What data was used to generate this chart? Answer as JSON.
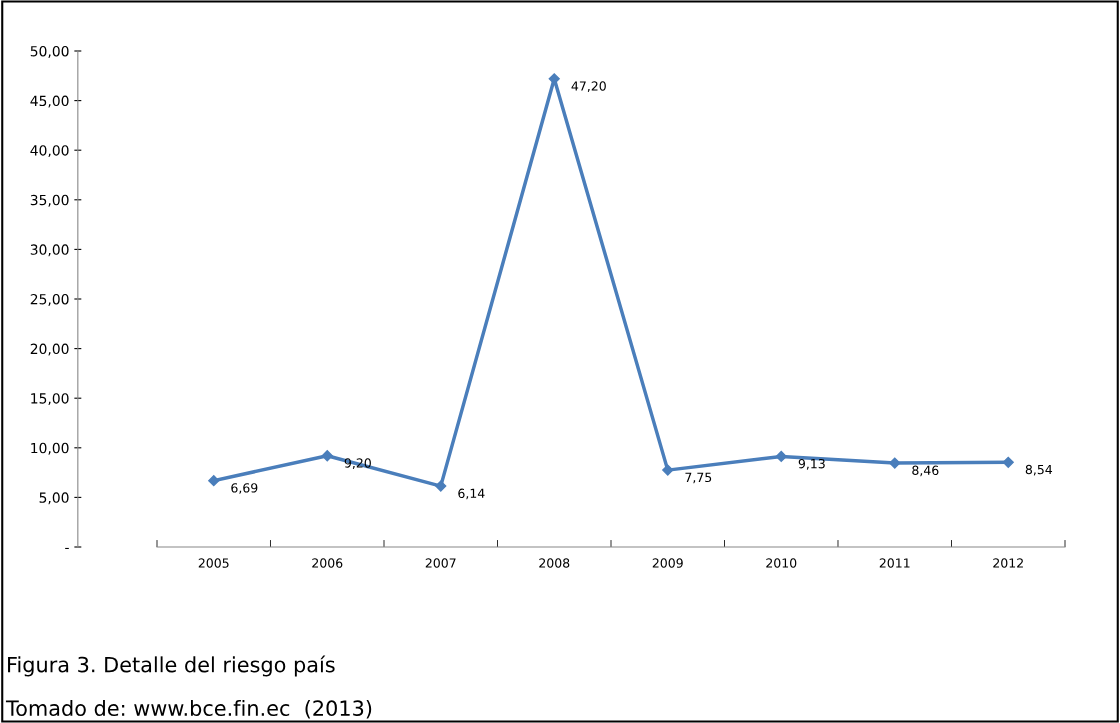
{
  "chart_data": {
    "type": "line",
    "title": "Figura 3. Detalle del riesgo país",
    "annotations": [
      "Tomado de: www.bce.fin.ec  (2013)"
    ],
    "categories": [
      "2005",
      "2006",
      "2007",
      "2008",
      "2009",
      "2010",
      "2011",
      "2012"
    ],
    "series": [
      {
        "color": "#4a7ebb",
        "values": [
          6.69,
          9.2,
          6.14,
          47.2,
          7.75,
          9.13,
          8.46,
          8.54
        ],
        "value_labels": [
          "6,69",
          "9,20",
          "6,14",
          "47,20",
          "7,75",
          "9,13",
          "8,46",
          "8,54"
        ]
      }
    ],
    "ylim": [
      0,
      50
    ],
    "yticks": [
      {
        "value": 0,
        "label": "-"
      },
      {
        "value": 5,
        "label": "5,00"
      },
      {
        "value": 10,
        "label": "10,00"
      },
      {
        "value": 15,
        "label": "15,00"
      },
      {
        "value": 20,
        "label": "20,00"
      },
      {
        "value": 25,
        "label": "25,00"
      },
      {
        "value": 30,
        "label": "30,00"
      },
      {
        "value": 35,
        "label": "35,00"
      },
      {
        "value": 40,
        "label": "40,00"
      },
      {
        "value": 45,
        "label": "45,00"
      },
      {
        "value": 50,
        "label": "50,00"
      }
    ],
    "marker": "diamond",
    "line_style": "solid",
    "grid": false,
    "legend": false
  }
}
